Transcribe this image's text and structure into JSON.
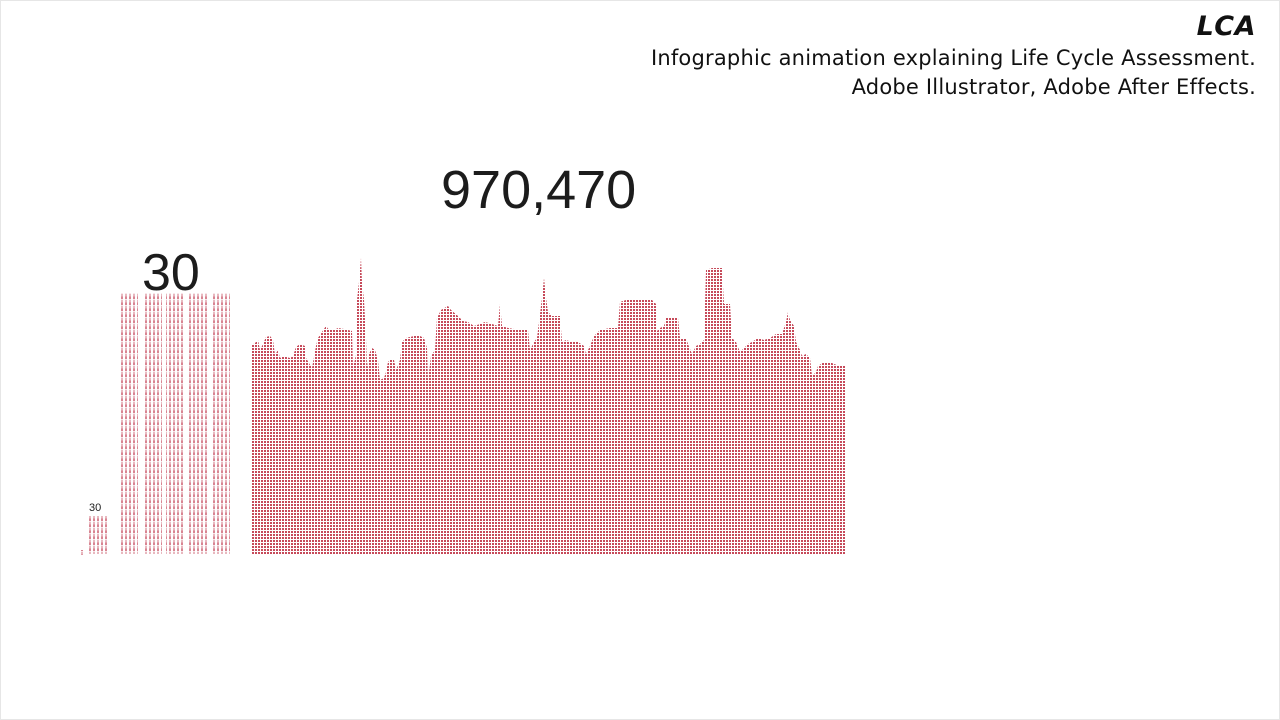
{
  "caption": {
    "title": "LCA",
    "line1": "Infographic animation explaining Life Cycle Assessment.",
    "line2": "Adobe Illustrator, Adobe After Effects."
  },
  "counts": {
    "big": "970,470",
    "medium": "30",
    "small": "30"
  },
  "colors": {
    "figure": "#c64a5a",
    "figure_light": "#e7a9b3",
    "text": "#111111",
    "background": "#ffffff"
  }
}
